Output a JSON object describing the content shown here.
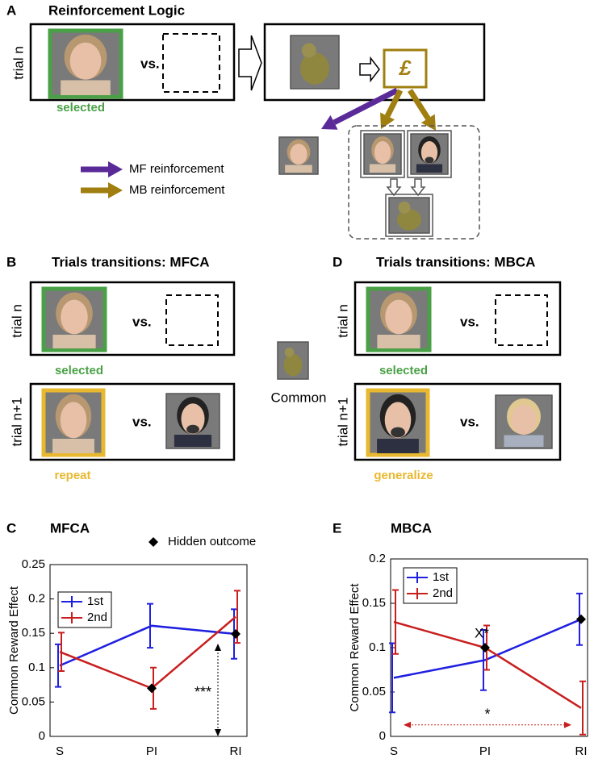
{
  "figure": {
    "panel_a": {
      "label": "A",
      "title": "Reinforcement Logic",
      "trial": "trial n",
      "vs": "vs.",
      "selected": "selected",
      "currency": "£",
      "legend": [
        "MF reinforcement",
        "MB reinforcement"
      ]
    },
    "panel_b": {
      "label": "B",
      "title": "Trials transitions: MFCA",
      "trial_1": "trial n",
      "trial_2": "trial n+1",
      "vs_1": "vs.",
      "vs_2": "vs.",
      "selected": "selected",
      "outcome": "repeat"
    },
    "common": "Common",
    "panel_d": {
      "label": "D",
      "title": "Trials transitions: MBCA",
      "trial_1": "trial n",
      "trial_2": "trial n+1",
      "vs_1": "vs.",
      "vs_2": "vs.",
      "selected": "selected",
      "outcome": "generalize"
    }
  },
  "chart_data": [
    {
      "type": "line",
      "panel": "C",
      "title": "MFCA",
      "ylabel": "Common Reward Effect",
      "categories": [
        "S",
        "PI",
        "RI"
      ],
      "ylim": [
        0,
        0.25
      ],
      "yticks": [
        0,
        0.05,
        0.1,
        0.15,
        0.2,
        0.25
      ],
      "series": [
        {
          "name": "1st",
          "color": "#1f1fe0",
          "values": [
            0.103,
            0.161,
            0.149
          ],
          "errors": [
            0.031,
            0.032,
            0.036
          ]
        },
        {
          "name": "2nd",
          "color": "#c81e1e",
          "values": [
            0.123,
            0.07,
            0.174
          ],
          "errors": [
            0.028,
            0.03,
            0.038
          ]
        }
      ],
      "markers": {
        "name": "Hidden outcome",
        "color": "#000000",
        "values": [
          null,
          0.07,
          0.149
        ]
      },
      "annotation": {
        "text": "***",
        "y": [
          0,
          0.135
        ]
      }
    },
    {
      "type": "line",
      "panel": "E",
      "title": "MBCA",
      "ylabel": "Common Reward Effect",
      "categories": [
        "S",
        "PI",
        "RI"
      ],
      "ylim": [
        0,
        0.2
      ],
      "yticks": [
        0,
        0.05,
        0.1,
        0.15,
        0.2
      ],
      "series": [
        {
          "name": "1st",
          "color": "#1f1fe0",
          "values": [
            0.066,
            0.086,
            0.132
          ],
          "errors": [
            0.039,
            0.034,
            0.029
          ]
        },
        {
          "name": "2nd",
          "color": "#c81e1e",
          "values": [
            0.129,
            0.1,
            0.032
          ],
          "errors": [
            0.036,
            0.025,
            0.03
          ]
        }
      ],
      "markers": {
        "color": "#000000",
        "values": [
          null,
          0.1,
          0.132
        ]
      },
      "note": "X*",
      "annotation": {
        "text": "*",
        "y": [
          0.013
        ]
      }
    }
  ]
}
